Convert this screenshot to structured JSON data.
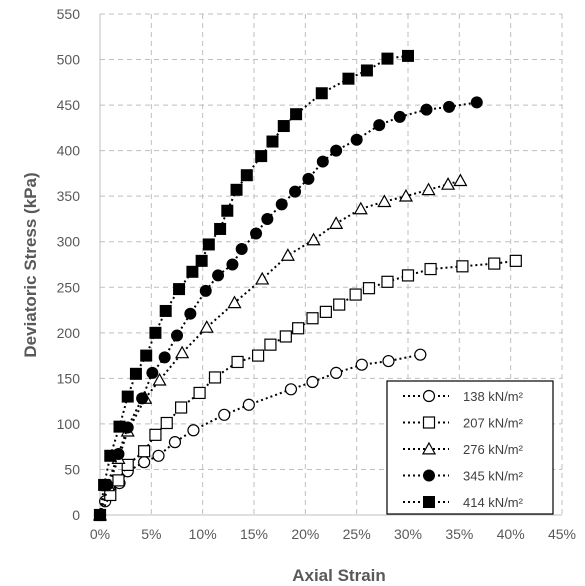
{
  "chart_data": {
    "type": "scatter",
    "title": "",
    "xlabel": "Axial Strain",
    "ylabel": "Deviatoric Stress (kPa)",
    "xlim": [
      0,
      0.45
    ],
    "ylim": [
      0,
      550
    ],
    "x_ticks": [
      0,
      0.05,
      0.1,
      0.15,
      0.2,
      0.25,
      0.3,
      0.35,
      0.4,
      0.45
    ],
    "x_tick_labels": [
      "0%",
      "5%",
      "10%",
      "15%",
      "20%",
      "25%",
      "30%",
      "35%",
      "40%",
      "45%"
    ],
    "y_ticks": [
      0,
      50,
      100,
      150,
      200,
      250,
      300,
      350,
      400,
      450,
      500,
      550
    ],
    "y_tick_labels": [
      "0",
      "50",
      "100",
      "150",
      "200",
      "250",
      "300",
      "350",
      "400",
      "450",
      "500",
      "550"
    ],
    "grid": "dashed",
    "legend_position": "bottom-right",
    "line_style": "dotted",
    "series": [
      {
        "name": "138 kN/m²",
        "marker": "circle-open",
        "color": "#000000",
        "x": [
          0.0,
          0.005,
          0.01,
          0.019,
          0.027,
          0.043,
          0.057,
          0.073,
          0.091,
          0.121,
          0.145,
          0.186,
          0.207,
          0.23,
          0.255,
          0.281,
          0.312
        ],
        "y": [
          0,
          15,
          28,
          35,
          48,
          58,
          65,
          80,
          93,
          110,
          121,
          138,
          146,
          156,
          165,
          169,
          176
        ]
      },
      {
        "name": "207 kN/m²",
        "marker": "square-open",
        "color": "#000000",
        "x": [
          0.0,
          0.01,
          0.018,
          0.027,
          0.043,
          0.054,
          0.065,
          0.079,
          0.097,
          0.112,
          0.134,
          0.154,
          0.166,
          0.181,
          0.193,
          0.207,
          0.22,
          0.233,
          0.249,
          0.262,
          0.28,
          0.3,
          0.322,
          0.353,
          0.384,
          0.405
        ],
        "y": [
          0,
          22,
          38,
          55,
          70,
          88,
          101,
          118,
          134,
          151,
          168,
          175,
          187,
          196,
          205,
          216,
          223,
          231,
          242,
          249,
          256,
          263,
          270,
          273,
          276,
          279
        ]
      },
      {
        "name": "276 kN/m²",
        "marker": "triangle-open",
        "color": "#000000",
        "x": [
          0.0,
          0.008,
          0.018,
          0.027,
          0.044,
          0.058,
          0.08,
          0.104,
          0.131,
          0.158,
          0.183,
          0.208,
          0.23,
          0.254,
          0.277,
          0.298,
          0.32,
          0.339,
          0.351
        ],
        "y": [
          0,
          32,
          62,
          92,
          128,
          148,
          178,
          206,
          233,
          259,
          285,
          302,
          320,
          336,
          344,
          350,
          357,
          363,
          367
        ]
      },
      {
        "name": "345 kN/m²",
        "marker": "circle-filled",
        "color": "#000000",
        "x": [
          0.0,
          0.007,
          0.018,
          0.027,
          0.041,
          0.051,
          0.063,
          0.075,
          0.088,
          0.103,
          0.115,
          0.129,
          0.138,
          0.152,
          0.163,
          0.177,
          0.19,
          0.203,
          0.217,
          0.23,
          0.25,
          0.272,
          0.292,
          0.318,
          0.34,
          0.367
        ],
        "y": [
          0,
          33,
          67,
          96,
          128,
          156,
          173,
          197,
          221,
          246,
          263,
          275,
          292,
          309,
          325,
          341,
          355,
          369,
          388,
          400,
          412,
          428,
          437,
          445,
          448,
          453
        ]
      },
      {
        "name": "414 kN/m²",
        "marker": "square-filled",
        "color": "#000000",
        "x": [
          0.0,
          0.004,
          0.01,
          0.019,
          0.027,
          0.035,
          0.045,
          0.054,
          0.064,
          0.077,
          0.09,
          0.099,
          0.106,
          0.117,
          0.124,
          0.133,
          0.143,
          0.157,
          0.168,
          0.179,
          0.191,
          0.216,
          0.242,
          0.26,
          0.28,
          0.3
        ],
        "y": [
          0,
          33,
          65,
          97,
          130,
          155,
          175,
          200,
          224,
          248,
          267,
          279,
          297,
          314,
          334,
          357,
          373,
          394,
          410,
          427,
          440,
          463,
          479,
          488,
          501,
          504
        ]
      }
    ]
  }
}
